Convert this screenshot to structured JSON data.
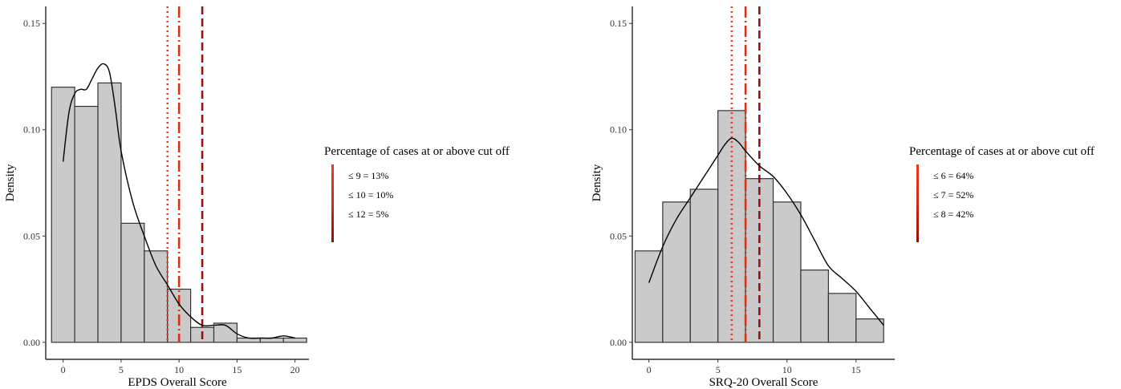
{
  "colors": {
    "hist_fill": "#cacaca",
    "hist_stroke": "#333333",
    "density_line": "#000000",
    "cutoff_low": "#f03b20",
    "cutoff_mid": "#d42f18",
    "cutoff_high": "#9a1208"
  },
  "chart_data": [
    {
      "type": "histogram",
      "title": "",
      "xlabel": "EPDS Overall Score",
      "ylabel": "Density",
      "xlim": [
        -1.5,
        21.2
      ],
      "ylim": [
        -0.008,
        0.158
      ],
      "x_ticks": [
        0,
        5,
        10,
        15,
        20
      ],
      "y_ticks": [
        0.0,
        0.05,
        0.1,
        0.15
      ],
      "grid": false,
      "bins": [
        {
          "x0": -1,
          "x1": 1,
          "value": 0.12
        },
        {
          "x0": 1,
          "x1": 3,
          "value": 0.111
        },
        {
          "x0": 3,
          "x1": 5,
          "value": 0.122
        },
        {
          "x0": 5,
          "x1": 7,
          "value": 0.056
        },
        {
          "x0": 7,
          "x1": 9,
          "value": 0.043
        },
        {
          "x0": 9,
          "x1": 11,
          "value": 0.025
        },
        {
          "x0": 11,
          "x1": 13,
          "value": 0.007
        },
        {
          "x0": 13,
          "x1": 15,
          "value": 0.009
        },
        {
          "x0": 15,
          "x1": 17,
          "value": 0.002
        },
        {
          "x0": 17,
          "x1": 19,
          "value": 0.002
        },
        {
          "x0": 19,
          "x1": 21,
          "value": 0.002
        }
      ],
      "density": {
        "x": [
          0,
          0.5,
          1,
          1.5,
          2,
          2.5,
          3,
          3.5,
          4,
          4.5,
          5,
          6,
          7,
          8,
          9,
          10,
          11,
          12,
          13,
          14,
          15,
          16,
          17,
          18,
          19,
          20
        ],
        "y": [
          0.085,
          0.108,
          0.117,
          0.119,
          0.119,
          0.124,
          0.129,
          0.131,
          0.127,
          0.11,
          0.09,
          0.066,
          0.05,
          0.036,
          0.027,
          0.018,
          0.012,
          0.008,
          0.008,
          0.008,
          0.004,
          0.002,
          0.002,
          0.002,
          0.003,
          0.002
        ]
      },
      "cutoffs": [
        {
          "x": 9,
          "style": "dotted",
          "color_key": "cutoff_low",
          "label": "≤ 9 = 13%"
        },
        {
          "x": 10,
          "style": "dashdot",
          "color_key": "cutoff_mid",
          "label": "≤ 10 = 10%"
        },
        {
          "x": 12,
          "style": "dashed",
          "color_key": "cutoff_high",
          "label": "≤ 12 = 5%"
        }
      ],
      "legend": {
        "title": "Percentage of cases at or above cut off",
        "position": "right"
      }
    },
    {
      "type": "histogram",
      "title": "",
      "xlabel": "SRQ-20 Overall Score",
      "ylabel": "Density",
      "xlim": [
        -1.2,
        17.8
      ],
      "ylim": [
        -0.008,
        0.158
      ],
      "x_ticks": [
        0,
        5,
        10,
        15
      ],
      "y_ticks": [
        0.0,
        0.05,
        0.1,
        0.15
      ],
      "grid": false,
      "bins": [
        {
          "x0": -1,
          "x1": 1,
          "value": 0.043
        },
        {
          "x0": 1,
          "x1": 3,
          "value": 0.066
        },
        {
          "x0": 3,
          "x1": 5,
          "value": 0.072
        },
        {
          "x0": 5,
          "x1": 7,
          "value": 0.109
        },
        {
          "x0": 7,
          "x1": 9,
          "value": 0.077
        },
        {
          "x0": 9,
          "x1": 11,
          "value": 0.066
        },
        {
          "x0": 11,
          "x1": 13,
          "value": 0.034
        },
        {
          "x0": 13,
          "x1": 15,
          "value": 0.023
        },
        {
          "x0": 15,
          "x1": 17,
          "value": 0.011
        }
      ],
      "density": {
        "x": [
          0,
          1,
          2,
          3,
          4,
          5,
          5.5,
          6,
          6.5,
          7,
          8,
          9,
          10,
          11,
          12,
          13,
          14,
          15,
          16,
          17
        ],
        "y": [
          0.028,
          0.045,
          0.058,
          0.068,
          0.078,
          0.088,
          0.093,
          0.096,
          0.094,
          0.09,
          0.083,
          0.078,
          0.07,
          0.06,
          0.048,
          0.036,
          0.03,
          0.024,
          0.016,
          0.008
        ]
      },
      "cutoffs": [
        {
          "x": 6,
          "style": "dotted",
          "color_key": "cutoff_low",
          "label": "≤ 6 = 64%"
        },
        {
          "x": 7,
          "style": "dashdot",
          "color_key": "cutoff_mid",
          "label": "≤ 7 = 52%"
        },
        {
          "x": 8,
          "style": "dashed",
          "color_key": "cutoff_high",
          "label": "≤ 8 = 42%"
        }
      ],
      "legend": {
        "title": "Percentage of cases at or above cut off",
        "position": "right"
      }
    }
  ]
}
